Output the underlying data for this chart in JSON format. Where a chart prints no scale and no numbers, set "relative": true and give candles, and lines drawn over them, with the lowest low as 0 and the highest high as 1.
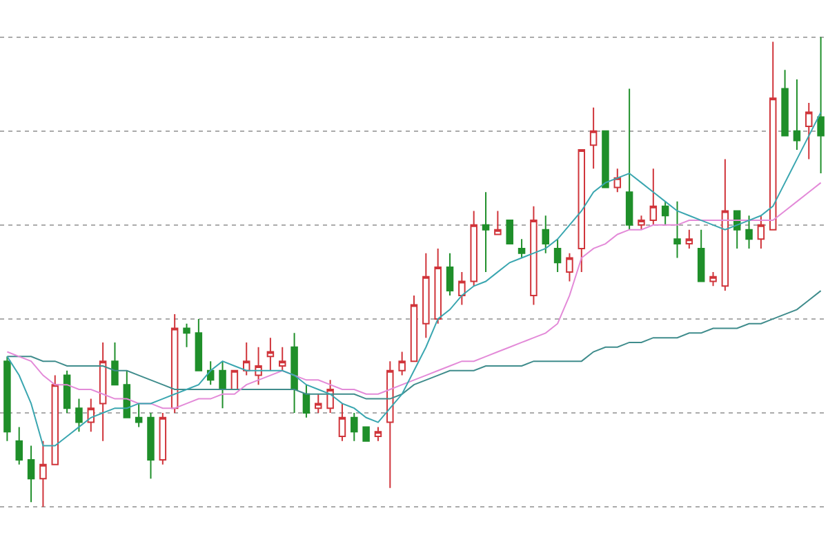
{
  "chart_data": {
    "type": "candlestick",
    "relative": true,
    "grid": "y",
    "categories": [
      null,
      null,
      null,
      null,
      null,
      null,
      null,
      null,
      null,
      null,
      null,
      null,
      null,
      null,
      null,
      null,
      null,
      null,
      null,
      null,
      null,
      null,
      null,
      null,
      null,
      null,
      null,
      null,
      null,
      null,
      null,
      null,
      null,
      null,
      null,
      null,
      null,
      null,
      null,
      null,
      null,
      null,
      null,
      null,
      null,
      null,
      null,
      null,
      null,
      null,
      null,
      null,
      null,
      null,
      null,
      null,
      null,
      null,
      null,
      null,
      null,
      null,
      null,
      null,
      null,
      null,
      null,
      null,
      null
    ],
    "ohlc": [
      [
        0.31,
        0.32,
        0.14,
        0.16
      ],
      [
        0.14,
        0.17,
        0.09,
        0.1
      ],
      [
        0.1,
        0.13,
        0.01,
        0.06
      ],
      [
        0.06,
        0.14,
        0.0,
        0.09
      ],
      [
        0.09,
        0.28,
        0.09,
        0.26
      ],
      [
        0.28,
        0.29,
        0.2,
        0.21
      ],
      [
        0.21,
        0.23,
        0.16,
        0.18
      ],
      [
        0.18,
        0.23,
        0.16,
        0.21
      ],
      [
        0.22,
        0.35,
        0.14,
        0.31
      ],
      [
        0.31,
        0.35,
        0.26,
        0.26
      ],
      [
        0.26,
        0.29,
        0.19,
        0.19
      ],
      [
        0.19,
        0.22,
        0.17,
        0.18
      ],
      [
        0.19,
        0.2,
        0.06,
        0.1
      ],
      [
        0.1,
        0.2,
        0.09,
        0.19
      ],
      [
        0.21,
        0.41,
        0.2,
        0.38
      ],
      [
        0.38,
        0.39,
        0.34,
        0.37
      ],
      [
        0.37,
        0.4,
        0.29,
        0.29
      ],
      [
        0.29,
        0.31,
        0.26,
        0.27
      ],
      [
        0.29,
        0.31,
        0.21,
        0.25
      ],
      [
        0.25,
        0.29,
        0.25,
        0.29
      ],
      [
        0.29,
        0.35,
        0.28,
        0.31
      ],
      [
        0.28,
        0.34,
        0.26,
        0.3
      ],
      [
        0.32,
        0.36,
        0.29,
        0.33
      ],
      [
        0.3,
        0.34,
        0.29,
        0.31
      ],
      [
        0.34,
        0.37,
        0.2,
        0.25
      ],
      [
        0.24,
        0.26,
        0.19,
        0.2
      ],
      [
        0.21,
        0.24,
        0.2,
        0.22
      ],
      [
        0.21,
        0.27,
        0.2,
        0.25
      ],
      [
        0.15,
        0.22,
        0.14,
        0.19
      ],
      [
        0.19,
        0.2,
        0.14,
        0.16
      ],
      [
        0.17,
        0.17,
        0.14,
        0.14
      ],
      [
        0.15,
        0.17,
        0.14,
        0.16
      ],
      [
        0.18,
        0.31,
        0.04,
        0.29
      ],
      [
        0.29,
        0.33,
        0.28,
        0.31
      ],
      [
        0.31,
        0.45,
        0.31,
        0.43
      ],
      [
        0.39,
        0.54,
        0.36,
        0.49
      ],
      [
        0.4,
        0.55,
        0.39,
        0.51
      ],
      [
        0.51,
        0.54,
        0.45,
        0.46
      ],
      [
        0.45,
        0.5,
        0.43,
        0.48
      ],
      [
        0.48,
        0.63,
        0.47,
        0.6
      ],
      [
        0.6,
        0.67,
        0.5,
        0.59
      ],
      [
        0.58,
        0.63,
        0.58,
        0.59
      ],
      [
        0.61,
        0.61,
        0.56,
        0.56
      ],
      [
        0.55,
        0.57,
        0.53,
        0.54
      ],
      [
        0.45,
        0.64,
        0.43,
        0.61
      ],
      [
        0.59,
        0.62,
        0.54,
        0.56
      ],
      [
        0.55,
        0.57,
        0.5,
        0.52
      ],
      [
        0.5,
        0.54,
        0.48,
        0.53
      ],
      [
        0.55,
        0.76,
        0.5,
        0.76
      ],
      [
        0.77,
        0.85,
        0.72,
        0.8
      ],
      [
        0.8,
        0.8,
        0.68,
        0.68
      ],
      [
        0.68,
        0.72,
        0.67,
        0.7
      ],
      [
        0.67,
        0.89,
        0.59,
        0.6
      ],
      [
        0.6,
        0.62,
        0.59,
        0.61
      ],
      [
        0.61,
        0.72,
        0.6,
        0.64
      ],
      [
        0.64,
        0.65,
        0.6,
        0.62
      ],
      [
        0.57,
        0.65,
        0.53,
        0.56
      ],
      [
        0.56,
        0.59,
        0.55,
        0.57
      ],
      [
        0.55,
        0.59,
        0.48,
        0.48
      ],
      [
        0.48,
        0.5,
        0.47,
        0.49
      ],
      [
        0.47,
        0.74,
        0.46,
        0.63
      ],
      [
        0.63,
        0.63,
        0.55,
        0.59
      ],
      [
        0.59,
        0.62,
        0.55,
        0.57
      ],
      [
        0.57,
        0.62,
        0.55,
        0.6
      ],
      [
        0.59,
        0.99,
        0.59,
        0.87
      ],
      [
        0.89,
        0.93,
        0.79,
        0.79
      ],
      [
        0.8,
        0.91,
        0.76,
        0.78
      ],
      [
        0.81,
        0.86,
        0.74,
        0.84
      ],
      [
        0.83,
        1.0,
        0.71,
        0.79
      ]
    ],
    "colors": [
      "#1f8f2a",
      "#1f8f2a",
      "#1f8f2a",
      "#d0343a",
      "#d0343a",
      "#1f8f2a",
      "#1f8f2a",
      "#d0343a",
      "#d0343a",
      "#1f8f2a",
      "#1f8f2a",
      "#1f8f2a",
      "#1f8f2a",
      "#d0343a",
      "#d0343a",
      "#1f8f2a",
      "#1f8f2a",
      "#1f8f2a",
      "#1f8f2a",
      "#d0343a",
      "#d0343a",
      "#d0343a",
      "#d0343a",
      "#d0343a",
      "#1f8f2a",
      "#1f8f2a",
      "#d0343a",
      "#d0343a",
      "#d0343a",
      "#1f8f2a",
      "#1f8f2a",
      "#d0343a",
      "#d0343a",
      "#d0343a",
      "#d0343a",
      "#d0343a",
      "#d0343a",
      "#1f8f2a",
      "#d0343a",
      "#d0343a",
      "#1f8f2a",
      "#d0343a",
      "#1f8f2a",
      "#1f8f2a",
      "#d0343a",
      "#1f8f2a",
      "#1f8f2a",
      "#d0343a",
      "#d0343a",
      "#d0343a",
      "#1f8f2a",
      "#d0343a",
      "#1f8f2a",
      "#d0343a",
      "#d0343a",
      "#1f8f2a",
      "#1f8f2a",
      "#d0343a",
      "#1f8f2a",
      "#d0343a",
      "#d0343a",
      "#1f8f2a",
      "#1f8f2a",
      "#d0343a",
      "#d0343a",
      "#1f8f2a",
      "#1f8f2a",
      "#d0343a",
      "#1f8f2a"
    ],
    "series": [
      {
        "type": "line",
        "color": "#3f8c8c",
        "values": [
          0.32,
          0.32,
          0.32,
          0.31,
          0.31,
          0.3,
          0.3,
          0.3,
          0.3,
          0.29,
          0.29,
          0.28,
          0.27,
          0.26,
          0.25,
          0.25,
          0.25,
          0.25,
          0.25,
          0.25,
          0.25,
          0.25,
          0.25,
          0.25,
          0.25,
          0.24,
          0.24,
          0.24,
          0.24,
          0.24,
          0.23,
          0.23,
          0.23,
          0.24,
          0.26,
          0.27,
          0.28,
          0.29,
          0.29,
          0.29,
          0.3,
          0.3,
          0.3,
          0.3,
          0.31,
          0.31,
          0.31,
          0.31,
          0.31,
          0.33,
          0.34,
          0.34,
          0.35,
          0.35,
          0.36,
          0.36,
          0.36,
          0.37,
          0.37,
          0.38,
          0.38,
          0.38,
          0.39,
          0.39,
          0.4,
          0.41,
          0.42,
          0.44,
          0.46
        ]
      },
      {
        "type": "line",
        "color": "#e38ad8",
        "values": [
          0.33,
          0.32,
          0.31,
          0.28,
          0.26,
          0.26,
          0.25,
          0.25,
          0.24,
          0.23,
          0.23,
          0.22,
          0.22,
          0.21,
          0.21,
          0.22,
          0.23,
          0.23,
          0.24,
          0.24,
          0.26,
          0.27,
          0.28,
          0.29,
          0.28,
          0.27,
          0.27,
          0.26,
          0.25,
          0.25,
          0.24,
          0.24,
          0.25,
          0.26,
          0.27,
          0.28,
          0.29,
          0.3,
          0.31,
          0.31,
          0.32,
          0.33,
          0.34,
          0.35,
          0.36,
          0.37,
          0.39,
          0.45,
          0.53,
          0.55,
          0.56,
          0.58,
          0.59,
          0.59,
          0.6,
          0.6,
          0.6,
          0.61,
          0.61,
          0.61,
          0.61,
          0.61,
          0.61,
          0.61,
          0.61,
          0.63,
          0.65,
          0.67,
          0.69
        ]
      },
      {
        "type": "line",
        "color": "#3aa6b0",
        "values": [
          0.32,
          0.28,
          0.22,
          0.13,
          0.13,
          0.15,
          0.17,
          0.19,
          0.2,
          0.21,
          0.21,
          0.22,
          0.22,
          0.23,
          0.24,
          0.25,
          0.26,
          0.29,
          0.31,
          0.3,
          0.29,
          0.29,
          0.29,
          0.29,
          0.28,
          0.26,
          0.25,
          0.24,
          0.22,
          0.21,
          0.19,
          0.18,
          0.21,
          0.24,
          0.29,
          0.34,
          0.4,
          0.42,
          0.45,
          0.47,
          0.48,
          0.5,
          0.52,
          0.53,
          0.54,
          0.55,
          0.57,
          0.6,
          0.63,
          0.67,
          0.69,
          0.7,
          0.71,
          0.69,
          0.67,
          0.65,
          0.63,
          0.62,
          0.61,
          0.6,
          0.59,
          0.6,
          0.61,
          0.62,
          0.64,
          0.69,
          0.74,
          0.79,
          0.84
        ]
      }
    ]
  }
}
